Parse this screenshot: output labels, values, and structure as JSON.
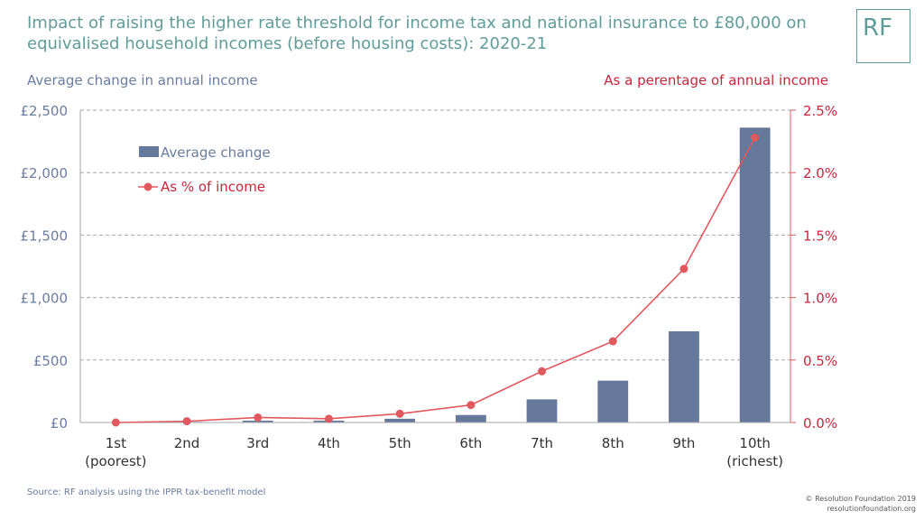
{
  "header": {
    "title": "Impact of raising the higher rate threshold for income tax and national insurance to £80,000 on equivalised household incomes (before housing costs): 2020-21",
    "logo_text": "RF"
  },
  "footer": {
    "source": "Source: RF analysis using the IPPR tax-benefit model",
    "copyright_line1": "© Resolution Foundation 2019",
    "copyright_line2": "resolutionfoundation.org"
  },
  "colors": {
    "bar": "#67799b",
    "line": "#e0595f",
    "left_axis": "#6a7ca1",
    "right_axis": "#c5283d",
    "title": "#5f9c9a"
  },
  "chart_data": {
    "type": "bar",
    "categories": [
      "1st\n(poorest)",
      "2nd",
      "3rd",
      "4th",
      "5th",
      "6th",
      "7th",
      "8th",
      "9th",
      "10th\n(richest)"
    ],
    "ylabel": "Average change in annual income",
    "y2label": "As a perentage of annual income",
    "ylim": [
      0,
      2500
    ],
    "y2lim": [
      0,
      0.025
    ],
    "yticks": [
      "£0",
      "£500",
      "£1,000",
      "£1,500",
      "£2,000",
      "£2,500"
    ],
    "y2ticks": [
      "0.0%",
      "0.5%",
      "1.0%",
      "1.5%",
      "2.0%",
      "2.5%"
    ],
    "grid": true,
    "legend_position": "top-left",
    "series": [
      {
        "name": "Average change",
        "type": "bar",
        "axis": "left",
        "values": [
          0,
          5,
          15,
          15,
          30,
          60,
          185,
          335,
          730,
          2360
        ]
      },
      {
        "name": "As % of income",
        "type": "line",
        "axis": "right",
        "values": [
          0.0,
          0.0001,
          0.0004,
          0.0003,
          0.0007,
          0.0014,
          0.0041,
          0.0065,
          0.0123,
          0.0228
        ]
      }
    ]
  }
}
